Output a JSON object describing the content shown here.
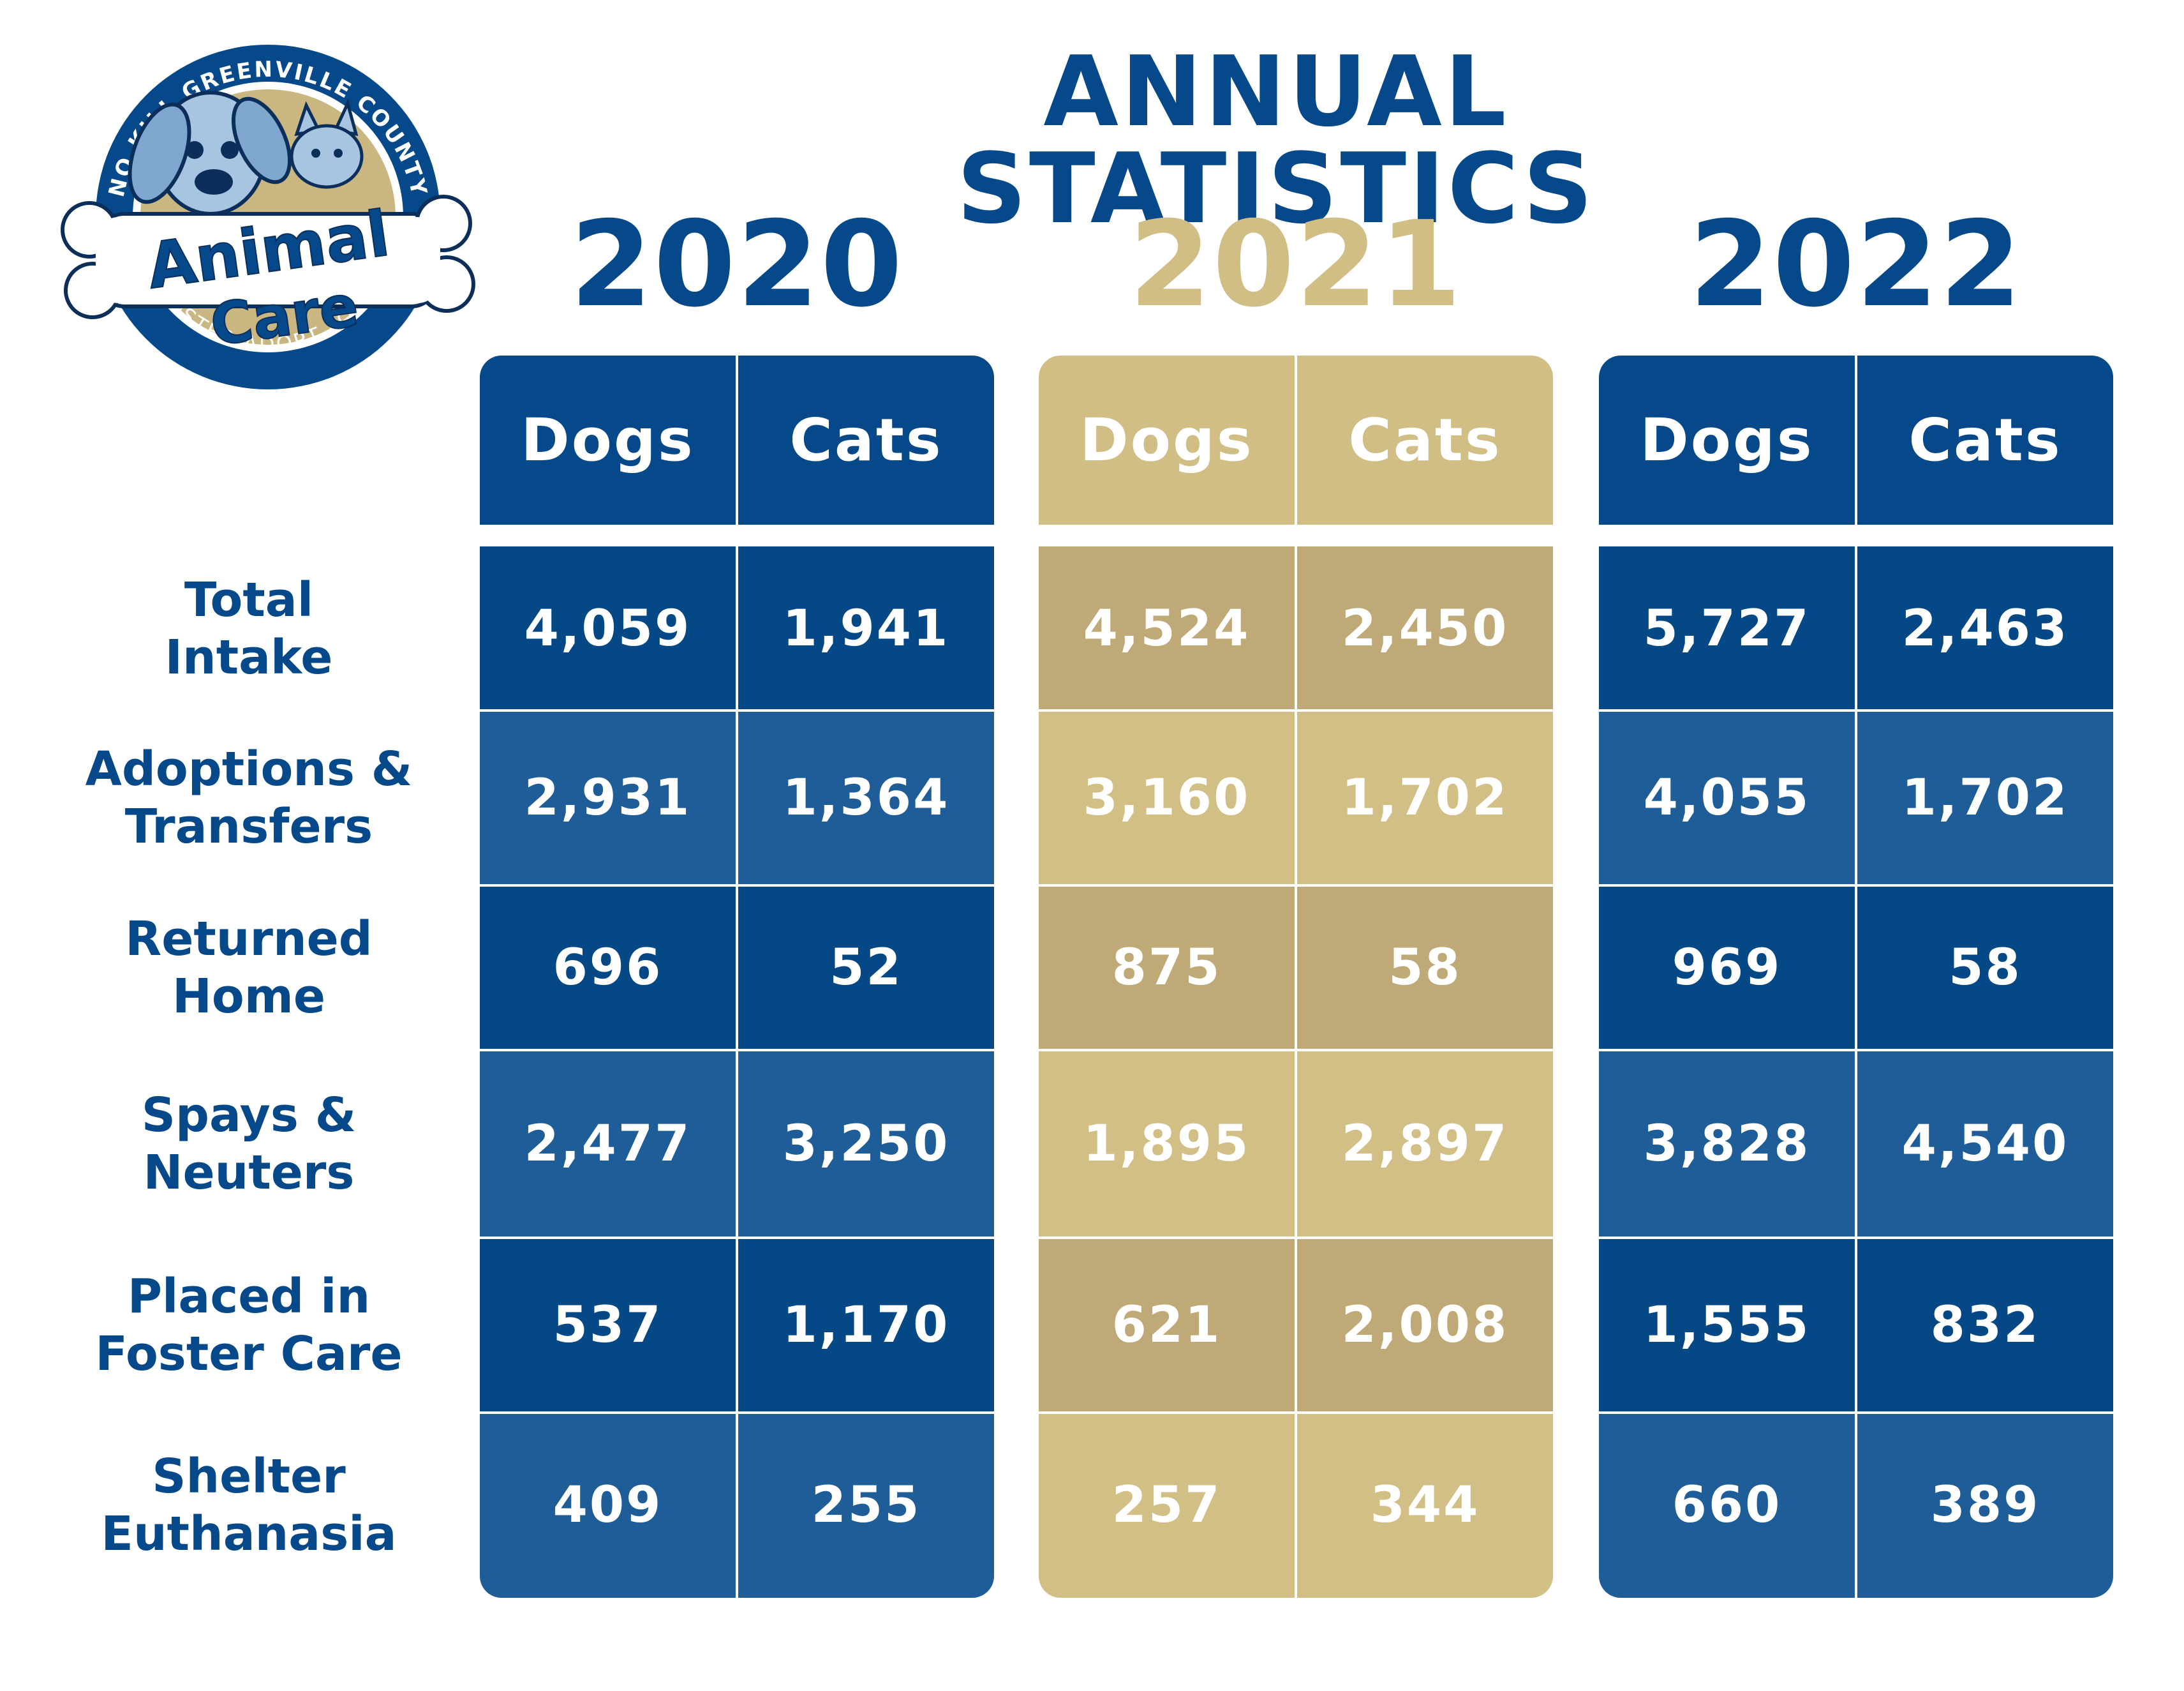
{
  "logo": {
    "ring_top": "NO KILL GREENVILLE COUNTY",
    "ring_bottom": "FOSTER ADOPT LOVE",
    "line1": "Animal",
    "line2": "Care",
    "icon": "dog-and-cat-with-bone-icon"
  },
  "title": "ANNUAL STATISTICS",
  "colors": {
    "navy": "#06498a",
    "navy_row_dark": "#044886",
    "navy_row_light": "#1e5d97",
    "gold": "#d0be85",
    "gold_row_dark": "#bfa977",
    "gold_row_light": "#d1bf85",
    "white": "#ffffff"
  },
  "row_labels": [
    [
      "Total",
      "Intake"
    ],
    [
      "Adoptions &",
      "Transfers"
    ],
    [
      "Returned",
      "Home"
    ],
    [
      "Spays &",
      "Neuters"
    ],
    [
      "Placed in",
      "Foster Care"
    ],
    [
      "Shelter",
      "Euthanasia"
    ]
  ],
  "chart_data": {
    "type": "table",
    "title": "ANNUAL STATISTICS",
    "years": [
      {
        "year": "2020",
        "columns": [
          "Dogs",
          "Cats"
        ],
        "rows": [
          [
            "4,059",
            "1,941"
          ],
          [
            "2,931",
            "1,364"
          ],
          [
            "696",
            "52"
          ],
          [
            "2,477",
            "3,250"
          ],
          [
            "537",
            "1,170"
          ],
          [
            "409",
            "255"
          ]
        ]
      },
      {
        "year": "2021",
        "columns": [
          "Dogs",
          "Cats"
        ],
        "rows": [
          [
            "4,524",
            "2,450"
          ],
          [
            "3,160",
            "1,702"
          ],
          [
            "875",
            "58"
          ],
          [
            "1,895",
            "2,897"
          ],
          [
            "621",
            "2,008"
          ],
          [
            "257",
            "344"
          ]
        ]
      },
      {
        "year": "2022",
        "columns": [
          "Dogs",
          "Cats"
        ],
        "rows": [
          [
            "5,727",
            "2,463"
          ],
          [
            "4,055",
            "1,702"
          ],
          [
            "969",
            "58"
          ],
          [
            "3,828",
            "4,540"
          ],
          [
            "1,555",
            "832"
          ],
          [
            "660",
            "389"
          ]
        ]
      }
    ]
  }
}
